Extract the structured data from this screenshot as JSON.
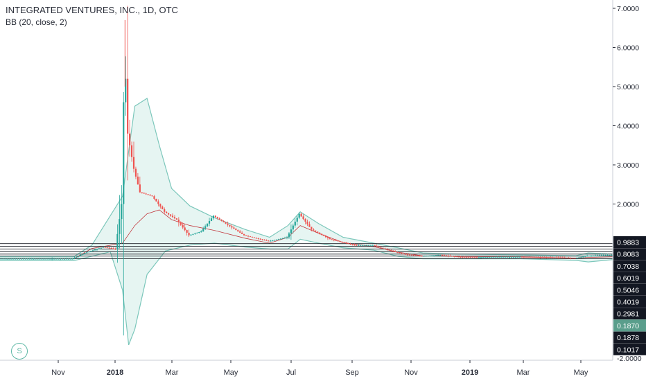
{
  "header": {
    "title": "INTEGRATED VENTURES, INC., 1D, OTC",
    "indicator": "BB (20, close, 2)"
  },
  "badge_label": "S",
  "colors": {
    "up": "#26a69a",
    "down": "#ef5350",
    "bb_band": "#7cc7bb",
    "bb_fill": "#e6f5f2",
    "basis": "#c2393f",
    "axis_text": "#2a2e39",
    "highlight_label_bg": "#5a9e8c"
  },
  "chart_data": {
    "type": "candlestick",
    "y_axis_ticks": [
      "7.0000",
      "6.0000",
      "5.0000",
      "4.0000",
      "3.0000",
      "2.0000"
    ],
    "y_axis_labels": [
      {
        "label": "0.9883",
        "value": 0.9883,
        "boxed": true
      },
      {
        "label": "0.8083",
        "value": 0.8083,
        "boxed": true
      },
      {
        "label": "0.7038",
        "value": 0.7038,
        "boxed": true
      },
      {
        "label": "0.6019",
        "value": 0.6019,
        "boxed": true
      },
      {
        "label": "0.5046",
        "value": 0.5046,
        "boxed": true
      },
      {
        "label": "0.4019",
        "value": 0.4019,
        "boxed": true
      },
      {
        "label": "0.2981",
        "value": 0.2981,
        "boxed": true
      },
      {
        "label": "0.1870",
        "value": 0.187,
        "boxed": true,
        "highlight": true
      },
      {
        "label": "0.1878",
        "value": 0.1878,
        "boxed": true
      },
      {
        "label": "0.1017",
        "value": 0.1017,
        "boxed": true
      },
      {
        "label": "-2.0000",
        "value": -2.0,
        "boxed": false
      }
    ],
    "horizontal_levels": [
      0.6,
      0.67,
      0.72,
      0.78,
      0.85,
      0.92,
      0.9883
    ],
    "x_ticks": [
      {
        "label": "Nov",
        "bold": false
      },
      {
        "label": "2018",
        "bold": true
      },
      {
        "label": "Mar",
        "bold": false
      },
      {
        "label": "May",
        "bold": false
      },
      {
        "label": "Jul",
        "bold": false
      },
      {
        "label": "Sep",
        "bold": false
      },
      {
        "label": "Nov",
        "bold": false
      },
      {
        "label": "2019",
        "bold": true
      },
      {
        "label": "Mar",
        "bold": false
      },
      {
        "label": "May",
        "bold": false
      }
    ],
    "price_path": [
      [
        0,
        0.6
      ],
      [
        12,
        0.6
      ],
      [
        14,
        0.75
      ],
      [
        17,
        0.9
      ],
      [
        19,
        0.85
      ],
      [
        20,
        2.0
      ],
      [
        20.5,
        5.9
      ],
      [
        21,
        3.8
      ],
      [
        22,
        2.9
      ],
      [
        23,
        2.3
      ],
      [
        25,
        2.2
      ],
      [
        27,
        1.8
      ],
      [
        29,
        1.6
      ],
      [
        31,
        1.2
      ],
      [
        33,
        1.3
      ],
      [
        35,
        1.7
      ],
      [
        37,
        1.5
      ],
      [
        40,
        1.2
      ],
      [
        44,
        1.05
      ],
      [
        47,
        1.15
      ],
      [
        49,
        1.75
      ],
      [
        51,
        1.35
      ],
      [
        54,
        1.1
      ],
      [
        58,
        0.95
      ],
      [
        61,
        0.95
      ],
      [
        64,
        0.8
      ],
      [
        66,
        0.72
      ],
      [
        69,
        0.67
      ],
      [
        72,
        0.7
      ],
      [
        75,
        0.65
      ],
      [
        78,
        0.64
      ],
      [
        81,
        0.65
      ],
      [
        85,
        0.65
      ],
      [
        90,
        0.64
      ],
      [
        94,
        0.62
      ],
      [
        96,
        0.68
      ],
      [
        100,
        0.7
      ]
    ],
    "bb_upper": [
      [
        0,
        0.65
      ],
      [
        12,
        0.65
      ],
      [
        15,
        0.95
      ],
      [
        20,
        2.2
      ],
      [
        22,
        4.5
      ],
      [
        24,
        4.7
      ],
      [
        26,
        3.5
      ],
      [
        28,
        2.4
      ],
      [
        31,
        1.95
      ],
      [
        35,
        1.65
      ],
      [
        40,
        1.35
      ],
      [
        44,
        1.15
      ],
      [
        47,
        1.45
      ],
      [
        49,
        1.8
      ],
      [
        52,
        1.5
      ],
      [
        56,
        1.15
      ],
      [
        61,
        1.0
      ],
      [
        65,
        0.88
      ],
      [
        69,
        0.75
      ],
      [
        75,
        0.72
      ],
      [
        85,
        0.7
      ],
      [
        94,
        0.68
      ],
      [
        96,
        0.75
      ],
      [
        100,
        0.72
      ]
    ],
    "bb_lower": [
      [
        0,
        0.55
      ],
      [
        12,
        0.55
      ],
      [
        18,
        0.78
      ],
      [
        20,
        -0.2
      ],
      [
        21,
        -1.6
      ],
      [
        22,
        -1.2
      ],
      [
        24,
        0.2
      ],
      [
        27,
        0.8
      ],
      [
        31,
        0.95
      ],
      [
        35,
        1.0
      ],
      [
        40,
        0.9
      ],
      [
        44,
        0.85
      ],
      [
        47,
        0.85
      ],
      [
        49,
        1.1
      ],
      [
        52,
        1.0
      ],
      [
        56,
        0.88
      ],
      [
        61,
        0.82
      ],
      [
        65,
        0.66
      ],
      [
        69,
        0.6
      ],
      [
        75,
        0.6
      ],
      [
        85,
        0.6
      ],
      [
        94,
        0.56
      ],
      [
        96,
        0.52
      ],
      [
        100,
        0.58
      ]
    ],
    "y_range": [
      -2.1,
      7.25
    ]
  }
}
